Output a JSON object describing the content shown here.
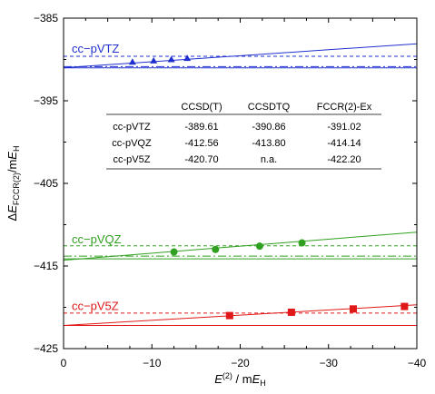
{
  "chart_data": {
    "type": "scatter",
    "title": "",
    "xlim": [
      0,
      -40
    ],
    "ylim": [
      -425,
      -385
    ],
    "xticks": [
      "0",
      "−10",
      "−20",
      "−30",
      "−40"
    ],
    "xtick_values": [
      0,
      -10,
      -20,
      -30,
      -40
    ],
    "yticks": [
      "−385",
      "−395",
      "−405",
      "−415",
      "−425"
    ],
    "ytick_values": [
      -385,
      -395,
      -405,
      -415,
      -425
    ],
    "xlabel": {
      "main": "E",
      "sup": "(2)",
      "rest": " / m",
      "unit": "E",
      "unit_sub": "H"
    },
    "ylabel": {
      "delta": "Δ",
      "main": "E",
      "sub": "FCCR(2)",
      "rest": "/m",
      "unit": "E",
      "unit_sub": "H"
    },
    "series": [
      {
        "name": "cc−pVTZ",
        "color": "#2030d0",
        "marker": "triangle",
        "points": [
          [
            -7.8,
            -390.3
          ],
          [
            -10.2,
            -390.15
          ],
          [
            -12.2,
            -390.0
          ],
          [
            -14.0,
            -389.85
          ]
        ],
        "fit_line": [
          [
            0,
            -391.0
          ],
          [
            -40,
            -388.1
          ]
        ],
        "ccsd_t": -389.61,
        "ccsdtq": -390.86,
        "fccr_ex": -391.02
      },
      {
        "name": "cc−pVQZ",
        "color": "#30a020",
        "marker": "circle",
        "points": [
          [
            -12.5,
            -413.3
          ],
          [
            -17.2,
            -413.0
          ],
          [
            -22.2,
            -412.6
          ],
          [
            -27.0,
            -412.2
          ]
        ],
        "fit_line": [
          [
            0,
            -414.3
          ],
          [
            -40,
            -410.9
          ]
        ],
        "ccsd_t": -412.56,
        "ccsdtq": -413.8,
        "fccr_ex": -414.14
      },
      {
        "name": "cc−pV5Z",
        "color": "#e01818",
        "marker": "square",
        "points": [
          [
            -18.8,
            -421.0
          ],
          [
            -25.8,
            -420.6
          ],
          [
            -32.8,
            -420.2
          ],
          [
            -38.6,
            -419.9
          ]
        ],
        "fit_line": [
          [
            0,
            -422.2
          ],
          [
            -40,
            -419.7
          ]
        ],
        "ccsd_t": -420.7,
        "ccsdtq": null,
        "fccr_ex": -422.2
      }
    ],
    "table": {
      "headers": [
        "",
        "CCSD(T)",
        "CCSDTQ",
        "FCCR(2)-Ex"
      ],
      "rows": [
        [
          "cc-pVTZ",
          "-389.61",
          "-390.86",
          "-391.02"
        ],
        [
          "cc-pVQZ",
          "-412.56",
          "-413.80",
          "-414.14"
        ],
        [
          "cc-pV5Z",
          "-420.70",
          "n.a.",
          "-422.20"
        ]
      ]
    }
  }
}
